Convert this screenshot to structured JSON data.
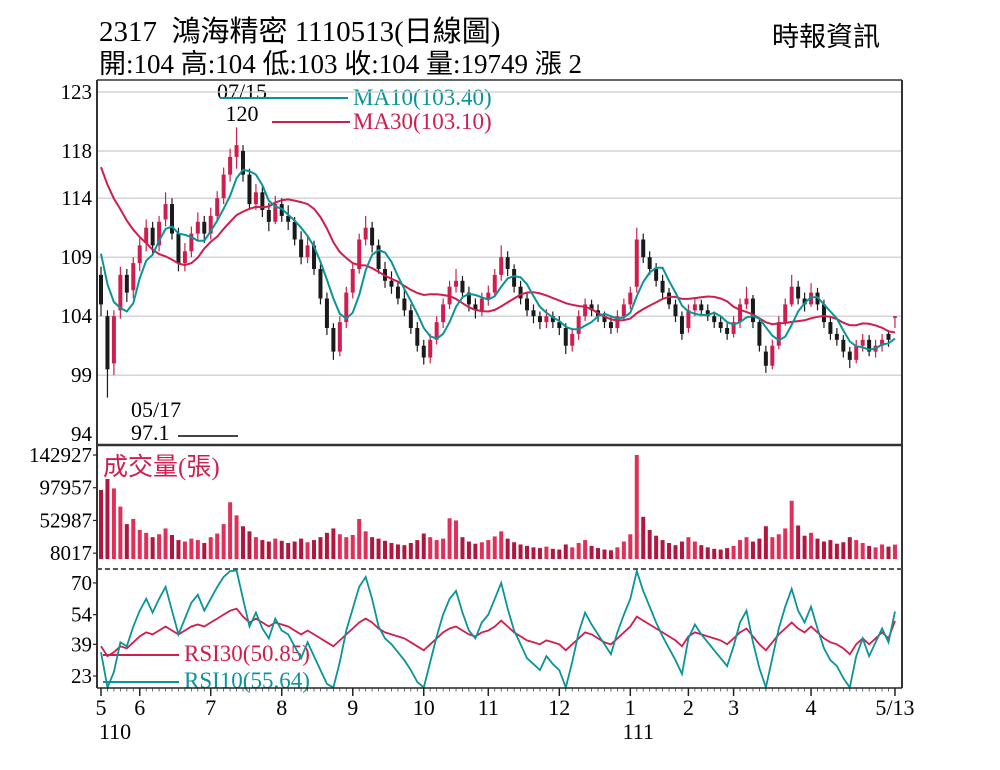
{
  "header": {
    "title_line": "2317  鴻海精密 1110513(日線圖)",
    "ohlc_line": "開:104 高:104 低:103 收:104 量:19749 漲 2",
    "brand": "時報資訊"
  },
  "chart_data": {
    "type": "candlestick",
    "stock_id": "2317",
    "stock_name": "鴻海精密",
    "session_date": "1110513",
    "chart_kind": "日線圖",
    "quote": {
      "open": 104,
      "high": 104,
      "low": 103,
      "close": 104,
      "volume": 19749,
      "change": "漲 2"
    },
    "colors": {
      "up": "#cf1e4e",
      "down": "#1a1a1a",
      "ma10": "#0a9498",
      "ma30": "#cf1e4e",
      "rsi10": "#0a9498",
      "rsi30": "#cf1e4e",
      "volume_up": "#e02f58",
      "volume_down": "#b2163f",
      "grid": "#c9c9c9",
      "axis": "#333333",
      "text": "#000000"
    },
    "main_pane": {
      "y_ticks": [
        123,
        118,
        114,
        109,
        104,
        99,
        94
      ],
      "legend": {
        "ma10_label": "MA10(103.40)",
        "ma30_label": "MA30(103.10)"
      },
      "annotations": {
        "peak_date": "07/15",
        "peak_price": "120",
        "low_date": "05/17",
        "low_price": "97.1"
      },
      "ma10_seed": [
        112.5,
        111.5,
        110.0,
        107.5
      ],
      "ma30_seed": [
        122,
        121.5,
        121,
        120.5,
        120,
        119.5,
        119,
        118.5,
        117.5,
        116.5,
        115,
        113.5,
        111.5,
        108.5
      ],
      "candles": [
        [
          107.5,
          108.2,
          104.0,
          105.0
        ],
        [
          104.0,
          104.5,
          97.1,
          99.5
        ],
        [
          100.0,
          104.5,
          99.0,
          104.0
        ],
        [
          104.5,
          108.2,
          103.8,
          107.5
        ],
        [
          107.5,
          108.0,
          105.2,
          106.0
        ],
        [
          106.2,
          109.0,
          105.5,
          108.5
        ],
        [
          108.5,
          110.6,
          107.8,
          110.0
        ],
        [
          110.2,
          112.2,
          109.5,
          111.5
        ],
        [
          111.5,
          112.0,
          109.3,
          110.0
        ],
        [
          110.0,
          112.5,
          109.5,
          112.0
        ],
        [
          112.2,
          114.5,
          111.6,
          113.5
        ],
        [
          113.5,
          114.0,
          110.5,
          111.0
        ],
        [
          111.0,
          111.5,
          107.8,
          108.5
        ],
        [
          108.5,
          110.2,
          107.8,
          109.5
        ],
        [
          109.5,
          111.6,
          109.0,
          111.0
        ],
        [
          111.0,
          112.8,
          110.4,
          112.0
        ],
        [
          112.0,
          112.5,
          110.2,
          111.0
        ],
        [
          111.0,
          113.2,
          110.5,
          112.5
        ],
        [
          112.5,
          114.6,
          112.0,
          114.0
        ],
        [
          114.0,
          116.6,
          113.5,
          116.0
        ],
        [
          116.0,
          118.2,
          115.4,
          117.5
        ],
        [
          117.5,
          120.0,
          116.5,
          118.5
        ],
        [
          118.0,
          118.5,
          115.4,
          116.0
        ],
        [
          116.0,
          116.5,
          113.0,
          113.5
        ],
        [
          113.5,
          115.2,
          113.0,
          114.5
        ],
        [
          114.5,
          115.0,
          112.4,
          113.0
        ],
        [
          113.0,
          113.6,
          111.2,
          112.0
        ],
        [
          112.0,
          114.2,
          111.8,
          113.5
        ],
        [
          113.5,
          114.0,
          112.0,
          112.5
        ],
        [
          112.5,
          113.4,
          111.3,
          112.0
        ],
        [
          112.0,
          112.4,
          110.0,
          110.5
        ],
        [
          110.5,
          111.2,
          108.4,
          109.0
        ],
        [
          109.0,
          110.8,
          108.5,
          110.0
        ],
        [
          110.0,
          110.4,
          107.5,
          108.0
        ],
        [
          108.0,
          108.4,
          105.0,
          105.5
        ],
        [
          105.5,
          106.0,
          102.4,
          103.0
        ],
        [
          103.0,
          103.4,
          100.3,
          101.0
        ],
        [
          101.0,
          104.0,
          100.6,
          103.5
        ],
        [
          103.5,
          106.5,
          103.0,
          106.0
        ],
        [
          106.0,
          108.5,
          105.5,
          108.0
        ],
        [
          108.0,
          111.0,
          107.6,
          110.5
        ],
        [
          110.5,
          112.5,
          110.0,
          111.5
        ],
        [
          111.5,
          112.0,
          109.4,
          110.0
        ],
        [
          110.0,
          110.5,
          107.6,
          108.0
        ],
        [
          108.0,
          108.6,
          106.4,
          107.0
        ],
        [
          107.0,
          107.8,
          105.9,
          106.5
        ],
        [
          106.5,
          107.0,
          105.0,
          105.5
        ],
        [
          105.5,
          106.2,
          104.0,
          104.5
        ],
        [
          104.5,
          105.0,
          102.5,
          103.0
        ],
        [
          103.0,
          103.5,
          101.0,
          101.5
        ],
        [
          101.5,
          102.0,
          99.9,
          100.5
        ],
        [
          100.5,
          102.5,
          100.0,
          102.0
        ],
        [
          102.0,
          104.0,
          101.6,
          103.5
        ],
        [
          103.5,
          105.5,
          103.0,
          105.0
        ],
        [
          105.0,
          107.0,
          104.6,
          106.5
        ],
        [
          106.5,
          108.0,
          106.0,
          107.0
        ],
        [
          107.0,
          107.4,
          105.5,
          106.0
        ],
        [
          106.0,
          106.5,
          104.4,
          105.0
        ],
        [
          105.0,
          105.5,
          103.8,
          104.5
        ],
        [
          104.5,
          106.0,
          104.0,
          105.5
        ],
        [
          105.5,
          106.6,
          104.9,
          106.0
        ],
        [
          106.0,
          108.0,
          105.6,
          107.5
        ],
        [
          107.5,
          110.0,
          107.0,
          109.0
        ],
        [
          109.0,
          109.5,
          107.4,
          108.0
        ],
        [
          108.0,
          108.4,
          106.0,
          106.5
        ],
        [
          106.5,
          107.0,
          105.0,
          105.5
        ],
        [
          105.5,
          106.0,
          104.0,
          104.5
        ],
        [
          104.5,
          105.0,
          103.4,
          104.0
        ],
        [
          104.0,
          104.4,
          102.9,
          103.5
        ],
        [
          103.5,
          104.6,
          103.0,
          104.0
        ],
        [
          104.0,
          104.4,
          103.0,
          103.5
        ],
        [
          103.5,
          104.0,
          102.4,
          103.0
        ],
        [
          103.0,
          103.4,
          100.8,
          101.5
        ],
        [
          101.5,
          103.0,
          101.0,
          102.5
        ],
        [
          102.5,
          104.5,
          102.0,
          104.0
        ],
        [
          104.0,
          105.5,
          103.6,
          105.0
        ],
        [
          105.0,
          105.4,
          104.0,
          104.5
        ],
        [
          104.5,
          105.0,
          103.5,
          104.0
        ],
        [
          104.0,
          104.4,
          103.0,
          103.5
        ],
        [
          103.5,
          104.0,
          102.5,
          103.0
        ],
        [
          103.0,
          104.5,
          102.6,
          104.0
        ],
        [
          104.0,
          105.5,
          103.6,
          105.0
        ],
        [
          105.0,
          106.5,
          104.6,
          106.0
        ],
        [
          106.5,
          111.5,
          106.0,
          110.5
        ],
        [
          110.5,
          111.0,
          108.5,
          109.0
        ],
        [
          109.0,
          109.5,
          107.5,
          108.0
        ],
        [
          108.0,
          108.5,
          106.5,
          107.0
        ],
        [
          107.0,
          107.5,
          105.5,
          106.0
        ],
        [
          106.0,
          106.4,
          104.6,
          105.0
        ],
        [
          105.0,
          105.4,
          103.5,
          104.0
        ],
        [
          104.0,
          104.4,
          102.0,
          102.5
        ],
        [
          103.0,
          105.0,
          102.6,
          104.5
        ],
        [
          104.5,
          105.6,
          104.0,
          105.0
        ],
        [
          105.0,
          105.4,
          104.0,
          104.5
        ],
        [
          104.5,
          105.0,
          103.6,
          104.0
        ],
        [
          104.0,
          104.4,
          103.0,
          103.5
        ],
        [
          103.5,
          104.0,
          102.6,
          103.0
        ],
        [
          103.0,
          103.4,
          102.0,
          102.5
        ],
        [
          102.5,
          104.0,
          102.2,
          103.5
        ],
        [
          103.5,
          105.5,
          103.0,
          105.0
        ],
        [
          105.0,
          106.5,
          104.6,
          105.5
        ],
        [
          105.5,
          105.8,
          103.0,
          103.5
        ],
        [
          103.5,
          103.8,
          101.0,
          101.5
        ],
        [
          101.0,
          101.5,
          99.2,
          99.8
        ],
        [
          99.8,
          102.0,
          99.5,
          101.5
        ],
        [
          101.5,
          104.0,
          101.2,
          103.5
        ],
        [
          103.5,
          105.5,
          103.2,
          105.0
        ],
        [
          105.0,
          107.5,
          104.8,
          106.5
        ],
        [
          106.5,
          107.0,
          105.0,
          105.5
        ],
        [
          105.5,
          106.0,
          104.4,
          105.0
        ],
        [
          105.0,
          106.8,
          104.8,
          106.0
        ],
        [
          106.0,
          106.4,
          104.5,
          105.0
        ],
        [
          105.0,
          105.4,
          103.0,
          103.5
        ],
        [
          103.5,
          104.0,
          102.0,
          102.5
        ],
        [
          102.5,
          103.0,
          101.5,
          102.0
        ],
        [
          102.0,
          102.4,
          100.5,
          101.0
        ],
        [
          101.0,
          101.4,
          99.6,
          100.3
        ],
        [
          100.3,
          102.0,
          100.0,
          101.5
        ],
        [
          101.5,
          102.5,
          101.0,
          102.0
        ],
        [
          102.0,
          102.4,
          100.6,
          101.0
        ],
        [
          101.0,
          102.0,
          100.5,
          101.5
        ],
        [
          101.5,
          102.5,
          101.0,
          102.0
        ],
        [
          102.5,
          102.8,
          101.4,
          102.0
        ],
        [
          104.0,
          104.0,
          103.0,
          104.0
        ]
      ]
    },
    "volume_pane": {
      "title": "成交量(張)",
      "y_ticks": [
        142927,
        97957,
        52987,
        8017
      ],
      "values": [
        95000,
        110000,
        97000,
        72000,
        48000,
        55000,
        40000,
        36000,
        30000,
        34000,
        42000,
        33000,
        26000,
        24000,
        28000,
        26000,
        22000,
        30000,
        35000,
        48000,
        78000,
        60000,
        45000,
        38000,
        30000,
        26000,
        24000,
        28000,
        25000,
        22000,
        24000,
        28000,
        23000,
        26000,
        30000,
        36000,
        42000,
        34000,
        30000,
        33000,
        55000,
        38000,
        30000,
        28000,
        25000,
        22000,
        20000,
        19000,
        22000,
        26000,
        35000,
        30000,
        26000,
        28000,
        56000,
        53000,
        30000,
        24000,
        21000,
        23000,
        26000,
        31000,
        38000,
        28000,
        23000,
        20000,
        18000,
        16000,
        15000,
        17000,
        14000,
        13000,
        20000,
        16000,
        22000,
        26000,
        18000,
        15000,
        13000,
        12000,
        16000,
        24000,
        34000,
        142927,
        58000,
        40000,
        32000,
        26000,
        22000,
        19000,
        24000,
        30000,
        24000,
        19000,
        16000,
        14000,
        13000,
        15000,
        18000,
        26000,
        30000,
        24000,
        28000,
        45000,
        30000,
        34000,
        42000,
        80000,
        46000,
        32000,
        36000,
        28000,
        24000,
        26000,
        21000,
        23000,
        30000,
        26000,
        22000,
        18000,
        16000,
        20000,
        17000,
        19749
      ]
    },
    "rsi_pane": {
      "y_ticks": [
        70,
        54,
        39,
        23
      ],
      "legend": {
        "rsi30_label": "RSI30(50.85)",
        "rsi10_label": "RSI10(55.64)"
      },
      "rsi10": [
        35,
        16,
        25,
        40,
        38,
        48,
        56,
        62,
        55,
        62,
        68,
        56,
        44,
        52,
        60,
        64,
        56,
        62,
        68,
        73,
        76,
        78,
        62,
        48,
        55,
        47,
        42,
        52,
        46,
        44,
        38,
        32,
        40,
        33,
        26,
        19,
        16,
        30,
        46,
        57,
        68,
        73,
        62,
        48,
        42,
        39,
        35,
        31,
        26,
        20,
        16,
        30,
        43,
        54,
        62,
        66,
        55,
        46,
        42,
        50,
        54,
        62,
        70,
        57,
        46,
        39,
        32,
        29,
        26,
        33,
        29,
        26,
        17,
        30,
        45,
        55,
        49,
        44,
        39,
        34,
        45,
        54,
        62,
        76,
        66,
        58,
        50,
        43,
        37,
        31,
        24,
        42,
        49,
        44,
        40,
        36,
        32,
        28,
        38,
        50,
        56,
        40,
        27,
        17,
        32,
        47,
        58,
        67,
        56,
        50,
        58,
        47,
        37,
        31,
        28,
        22,
        17,
        33,
        42,
        33,
        40,
        47,
        40,
        55.64
      ],
      "rsi30": [
        38,
        33,
        35,
        38,
        37,
        40,
        43,
        45,
        44,
        46,
        48,
        46,
        44,
        46,
        48,
        49,
        48,
        50,
        52,
        54,
        56,
        57,
        53,
        50,
        52,
        50,
        48,
        50,
        49,
        48,
        46,
        44,
        46,
        44,
        42,
        40,
        38,
        41,
        44,
        47,
        50,
        52,
        50,
        47,
        45,
        44,
        43,
        42,
        40,
        38,
        36,
        39,
        42,
        45,
        47,
        48,
        46,
        44,
        43,
        45,
        46,
        48,
        51,
        48,
        45,
        43,
        41,
        40,
        39,
        41,
        40,
        39,
        36,
        39,
        42,
        45,
        44,
        42,
        40,
        39,
        42,
        45,
        48,
        53,
        51,
        49,
        47,
        45,
        43,
        41,
        38,
        43,
        45,
        44,
        43,
        42,
        41,
        39,
        42,
        45,
        47,
        43,
        39,
        36,
        40,
        44,
        47,
        50,
        47,
        45,
        48,
        45,
        42,
        40,
        39,
        37,
        34,
        39,
        42,
        39,
        42,
        45,
        42,
        50.85
      ]
    },
    "x_axis": {
      "month_ticks": [
        {
          "label": "5",
          "idx": 0
        },
        {
          "label": "6",
          "idx": 6
        },
        {
          "label": "7",
          "idx": 17
        },
        {
          "label": "8",
          "idx": 28
        },
        {
          "label": "9",
          "idx": 39
        },
        {
          "label": "10",
          "idx": 50
        },
        {
          "label": "11",
          "idx": 60
        },
        {
          "label": "12",
          "idx": 71
        },
        {
          "label": "1",
          "idx": 82
        },
        {
          "label": "2",
          "idx": 91
        },
        {
          "label": "3",
          "idx": 98
        },
        {
          "label": "4",
          "idx": 110
        },
        {
          "label": "5/13",
          "idx": 123
        }
      ],
      "year_labels": [
        {
          "label": "110",
          "idx": 0,
          "align": "start"
        },
        {
          "label": "111",
          "idx": 82,
          "align": "middle"
        }
      ]
    }
  }
}
